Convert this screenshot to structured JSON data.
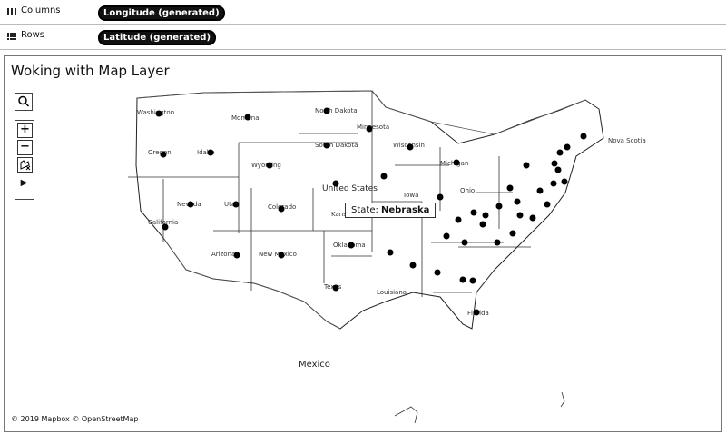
{
  "shelves": {
    "columns": {
      "label": "Columns",
      "pill": "Longitude (generated)"
    },
    "rows": {
      "label": "Rows",
      "pill": "Latitude (generated)"
    }
  },
  "viz": {
    "title": "Woking with Map Layer",
    "tooltip": {
      "key": "State:",
      "value": "Nebraska"
    },
    "attribution": "© 2019 Mapbox © OpenStreetMap",
    "map_labels": {
      "country": "United States",
      "mexico": "Mexico",
      "nova_scotia": "Nova Scotia",
      "florida": "Florida",
      "washington": "Washington",
      "montana": "Montana",
      "north_dakota": "North Dakota",
      "south_dakota": "South Dakota",
      "minnesota": "Minnesota",
      "wisconsin": "Wisconsin",
      "michigan": "Michigan",
      "oregon": "Oregon",
      "idaho": "Idaho",
      "wyoming": "Wyoming",
      "nevada": "Nevada",
      "utah": "Utah",
      "colorado": "Colorado",
      "kansas": "Kansas",
      "arizona": "Arizona",
      "new_mexico": "New Mexico",
      "oklahoma": "Oklahoma",
      "texas": "Texas",
      "ohio": "Ohio",
      "louisiana": "Louisiana",
      "iowa": "Iowa",
      "california": "California"
    },
    "controls": {
      "search": "search-icon",
      "zoom_in": "+",
      "zoom_out": "−",
      "pan": "pan-select-icon",
      "expand": "▶"
    }
  }
}
